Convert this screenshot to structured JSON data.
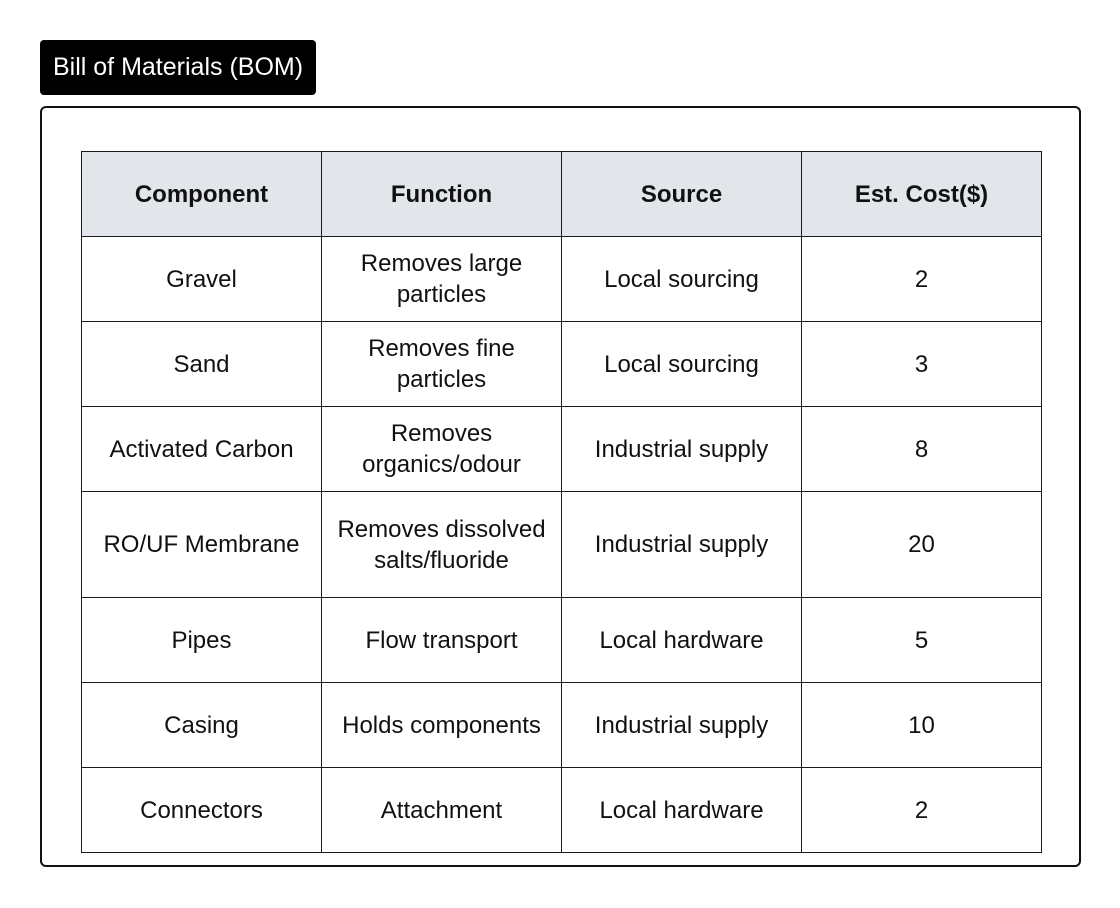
{
  "title": "Bill of Materials (BOM)",
  "table": {
    "headers": [
      "Component",
      "Function",
      "Source",
      "Est. Cost($)"
    ],
    "rows": [
      [
        "Gravel",
        "Removes large particles",
        "Local sourcing",
        "2"
      ],
      [
        "Sand",
        "Removes fine particles",
        "Local sourcing",
        "3"
      ],
      [
        "Activated Carbon",
        "Removes organics/odour",
        "Industrial supply",
        "8"
      ],
      [
        "RO/UF Membrane",
        "Removes dissolved salts/fluoride",
        "Industrial supply",
        "20"
      ],
      [
        "Pipes",
        "Flow transport",
        "Local hardware",
        "5"
      ],
      [
        "Casing",
        "Holds components",
        "Industrial supply",
        "10"
      ],
      [
        "Connectors",
        "Attachment",
        "Local hardware",
        "2"
      ]
    ]
  }
}
